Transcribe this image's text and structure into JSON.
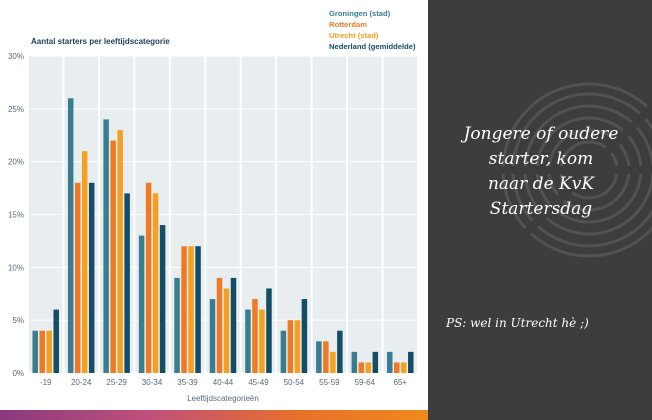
{
  "chart_data": {
    "type": "bar",
    "title": "Aantal starters per leeftijdscategorie",
    "xlabel": "Leeftijdscategorieën",
    "ylabel": "",
    "ylim": [
      0,
      30
    ],
    "yticks": [
      "0%",
      "5%",
      "10%",
      "15%",
      "20%",
      "25%",
      "30%"
    ],
    "categories": [
      "-19",
      "20-24",
      "25-29",
      "30-34",
      "35-39",
      "40-44",
      "45-49",
      "50-54",
      "55-59",
      "59-64",
      "65+"
    ],
    "series": [
      {
        "name": "Groningen (stad)",
        "color": "#3a7d91",
        "values": [
          4,
          26,
          24,
          13,
          9,
          7,
          6,
          4,
          3,
          2,
          2
        ]
      },
      {
        "name": "Rotterdam",
        "color": "#f07a23",
        "values": [
          4,
          18,
          22,
          18,
          12,
          9,
          7,
          5,
          3,
          1,
          1
        ]
      },
      {
        "name": "Utrecht (stad)",
        "color": "#f5a020",
        "values": [
          4,
          21,
          23,
          17,
          12,
          8,
          6,
          5,
          2,
          1,
          1
        ]
      },
      {
        "name": "Nederland (gemiddelde)",
        "color": "#144e66",
        "values": [
          6,
          18,
          17,
          14,
          12,
          9,
          8,
          7,
          4,
          2,
          2
        ]
      }
    ],
    "grid": true,
    "legend": "top-right"
  },
  "side_panel": {
    "slogan_lines": [
      "Jongere of oudere",
      "starter, kom",
      "naar de KvK",
      "Startersdag"
    ],
    "ps_text": "PS: wel in Utrecht hè ;)"
  },
  "colors": {
    "panel_background": "#3d3d3d",
    "column_band": "#e8edf0",
    "axis_text": "#5a6b78"
  }
}
